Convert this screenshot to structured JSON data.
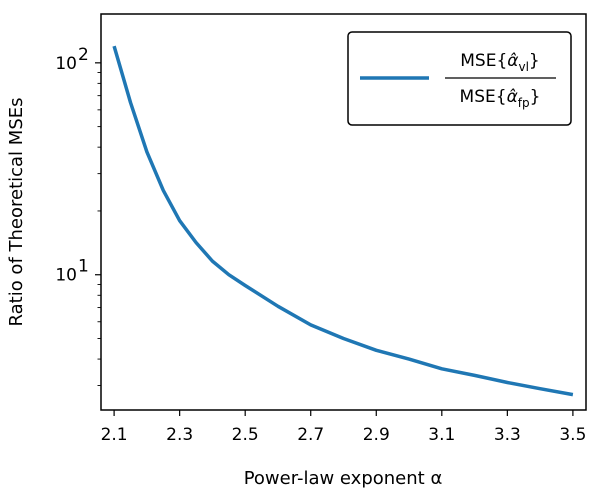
{
  "chart_data": {
    "type": "line",
    "title": "",
    "xlabel": "Power-law exponent α",
    "ylabel": "Ratio of Theoretical MSEs",
    "xscale": "linear",
    "yscale": "log",
    "xlim": [
      2.06,
      3.54
    ],
    "ylim": [
      2.3,
      170
    ],
    "xticks": [
      "2.1",
      "2.3",
      "2.5",
      "2.7",
      "2.9",
      "3.1",
      "3.3",
      "3.5"
    ],
    "yticks": [
      {
        "value": 10,
        "base": "10",
        "exponent": "1"
      },
      {
        "value": 100,
        "base": "10",
        "exponent": "2"
      }
    ],
    "grid": false,
    "legend_position": "top-right",
    "series": [
      {
        "label_numerator": {
          "prefix": "MSE{",
          "symbol": "α̂",
          "subscript": "vl",
          "suffix": "}"
        },
        "label_denominator": {
          "prefix": "MSE{",
          "symbol": "α̂",
          "subscript": "fp",
          "suffix": "}"
        },
        "color": "#1f77b4",
        "x": [
          2.1,
          2.15,
          2.2,
          2.25,
          2.3,
          2.35,
          2.4,
          2.45,
          2.5,
          2.6,
          2.7,
          2.8,
          2.9,
          3.0,
          3.1,
          3.2,
          3.3,
          3.4,
          3.5
        ],
        "y": [
          120,
          65,
          38,
          25,
          18,
          14.2,
          11.6,
          10.0,
          8.9,
          7.1,
          5.8,
          5.0,
          4.4,
          4.0,
          3.6,
          3.35,
          3.1,
          2.9,
          2.72
        ]
      }
    ]
  }
}
